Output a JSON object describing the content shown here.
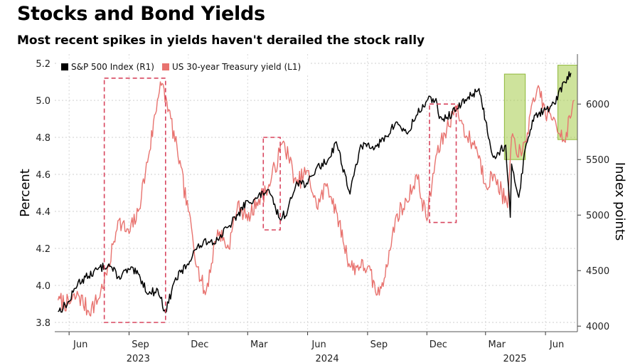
{
  "chart_data": {
    "type": "line",
    "title": "Stocks and Bond Yields",
    "subtitle": "Most recent spikes in yields haven't derailed the stock rally",
    "left_axis": {
      "label": "Percent",
      "range": [
        3.75,
        5.25
      ],
      "ticks": [
        "3.8",
        "4.0",
        "4.2",
        "4.4",
        "4.6",
        "4.8",
        "5.0",
        "5.2"
      ]
    },
    "right_axis": {
      "label": "Index points",
      "range": [
        3950,
        6450
      ],
      "ticks": [
        "4000",
        "4500",
        "5000",
        "5500",
        "6000"
      ]
    },
    "x_axis": {
      "month_ticks": [
        "Jun",
        "Sep",
        "Dec",
        "Mar",
        "Jun",
        "Sep",
        "Dec",
        "Mar",
        "Jun"
      ],
      "year_ticks": [
        "2023",
        "2024",
        "2025"
      ],
      "range": [
        "2023-05-10",
        "2025-07-20"
      ]
    },
    "grid": true,
    "legend": "top-left",
    "series": [
      {
        "name": "S&P 500 Index (R1)",
        "axis": "right",
        "color": "#000000",
        "points": [
          [
            "2023-05-15",
            4130
          ],
          [
            "2023-06-01",
            4220
          ],
          [
            "2023-06-15",
            4400
          ],
          [
            "2023-07-01",
            4450
          ],
          [
            "2023-07-15",
            4510
          ],
          [
            "2023-08-01",
            4560
          ],
          [
            "2023-08-15",
            4440
          ],
          [
            "2023-09-01",
            4510
          ],
          [
            "2023-09-15",
            4470
          ],
          [
            "2023-10-01",
            4290
          ],
          [
            "2023-10-15",
            4330
          ],
          [
            "2023-10-27",
            4120
          ],
          [
            "2023-11-10",
            4410
          ],
          [
            "2023-11-30",
            4560
          ],
          [
            "2023-12-15",
            4720
          ],
          [
            "2024-01-01",
            4760
          ],
          [
            "2024-01-15",
            4780
          ],
          [
            "2024-02-01",
            4900
          ],
          [
            "2024-02-15",
            5000
          ],
          [
            "2024-03-01",
            5130
          ],
          [
            "2024-03-15",
            5150
          ],
          [
            "2024-04-01",
            5230
          ],
          [
            "2024-04-19",
            4970
          ],
          [
            "2024-05-01",
            5030
          ],
          [
            "2024-05-15",
            5300
          ],
          [
            "2024-06-01",
            5280
          ],
          [
            "2024-06-15",
            5430
          ],
          [
            "2024-07-01",
            5480
          ],
          [
            "2024-07-15",
            5660
          ],
          [
            "2024-08-05",
            5190
          ],
          [
            "2024-08-20",
            5600
          ],
          [
            "2024-09-01",
            5640
          ],
          [
            "2024-09-15",
            5620
          ],
          [
            "2024-10-01",
            5710
          ],
          [
            "2024-10-15",
            5840
          ],
          [
            "2024-11-01",
            5730
          ],
          [
            "2024-11-15",
            5900
          ],
          [
            "2024-12-01",
            6030
          ],
          [
            "2024-12-15",
            6050
          ],
          [
            "2024-12-20",
            5870
          ],
          [
            "2025-01-01",
            5880
          ],
          [
            "2025-01-15",
            5950
          ],
          [
            "2025-02-01",
            6050
          ],
          [
            "2025-02-19",
            6140
          ],
          [
            "2025-03-01",
            5850
          ],
          [
            "2025-03-13",
            5520
          ],
          [
            "2025-04-01",
            5630
          ],
          [
            "2025-04-08",
            4980
          ],
          [
            "2025-04-10",
            5460
          ],
          [
            "2025-04-21",
            5160
          ],
          [
            "2025-05-01",
            5600
          ],
          [
            "2025-05-15",
            5900
          ],
          [
            "2025-06-01",
            5950
          ],
          [
            "2025-06-15",
            6000
          ],
          [
            "2025-06-30",
            6200
          ],
          [
            "2025-07-10",
            6280
          ]
        ]
      },
      {
        "name": "US 30-year Treasury yield (L1)",
        "axis": "left",
        "color": "#e8736f",
        "points": [
          [
            "2023-05-15",
            3.92
          ],
          [
            "2023-06-01",
            3.9
          ],
          [
            "2023-06-15",
            3.95
          ],
          [
            "2023-07-01",
            3.86
          ],
          [
            "2023-07-15",
            3.92
          ],
          [
            "2023-08-01",
            4.1
          ],
          [
            "2023-08-15",
            4.35
          ],
          [
            "2023-09-01",
            4.28
          ],
          [
            "2023-09-15",
            4.4
          ],
          [
            "2023-10-01",
            4.7
          ],
          [
            "2023-10-19",
            5.1
          ],
          [
            "2023-11-01",
            4.95
          ],
          [
            "2023-11-15",
            4.7
          ],
          [
            "2023-12-01",
            4.4
          ],
          [
            "2023-12-15",
            4.1
          ],
          [
            "2023-12-27",
            3.95
          ],
          [
            "2024-01-15",
            4.3
          ],
          [
            "2024-02-01",
            4.2
          ],
          [
            "2024-02-15",
            4.45
          ],
          [
            "2024-03-01",
            4.35
          ],
          [
            "2024-03-15",
            4.45
          ],
          [
            "2024-04-01",
            4.52
          ],
          [
            "2024-04-25",
            4.78
          ],
          [
            "2024-05-15",
            4.55
          ],
          [
            "2024-06-01",
            4.62
          ],
          [
            "2024-06-15",
            4.42
          ],
          [
            "2024-07-01",
            4.55
          ],
          [
            "2024-07-15",
            4.4
          ],
          [
            "2024-08-05",
            4.1
          ],
          [
            "2024-08-20",
            4.1
          ],
          [
            "2024-09-01",
            4.1
          ],
          [
            "2024-09-16",
            3.95
          ],
          [
            "2024-10-01",
            4.1
          ],
          [
            "2024-10-15",
            4.38
          ],
          [
            "2024-11-01",
            4.45
          ],
          [
            "2024-11-15",
            4.6
          ],
          [
            "2024-12-01",
            4.35
          ],
          [
            "2024-12-15",
            4.7
          ],
          [
            "2025-01-14",
            4.97
          ],
          [
            "2025-02-01",
            4.8
          ],
          [
            "2025-02-15",
            4.75
          ],
          [
            "2025-03-01",
            4.55
          ],
          [
            "2025-03-15",
            4.6
          ],
          [
            "2025-04-04",
            4.42
          ],
          [
            "2025-04-10",
            4.8
          ],
          [
            "2025-04-25",
            4.7
          ],
          [
            "2025-05-21",
            5.08
          ],
          [
            "2025-06-01",
            4.92
          ],
          [
            "2025-06-15",
            4.9
          ],
          [
            "2025-06-30",
            4.78
          ],
          [
            "2025-07-15",
            5.0
          ]
        ]
      }
    ],
    "annotations": [
      {
        "type": "dashed-box",
        "color": "#d8465f",
        "from": "2023-07-25",
        "to": "2023-10-27",
        "y_range_left": [
          3.8,
          5.12
        ]
      },
      {
        "type": "dashed-box",
        "color": "#d8465f",
        "from": "2024-03-25",
        "to": "2024-04-20",
        "y_range_left": [
          4.3,
          4.8
        ]
      },
      {
        "type": "dashed-box",
        "color": "#d8465f",
        "from": "2024-12-05",
        "to": "2025-01-15",
        "y_range_left": [
          4.34,
          4.98
        ]
      },
      {
        "type": "shaded-box",
        "color": "#a6cc4a",
        "from": "2025-03-30",
        "to": "2025-05-01",
        "y_range_right": [
          5500,
          6270
        ]
      },
      {
        "type": "shaded-box",
        "color": "#a6cc4a",
        "from": "2025-06-20",
        "to": "2025-07-20",
        "y_range_right": [
          5680,
          6350
        ]
      }
    ]
  }
}
